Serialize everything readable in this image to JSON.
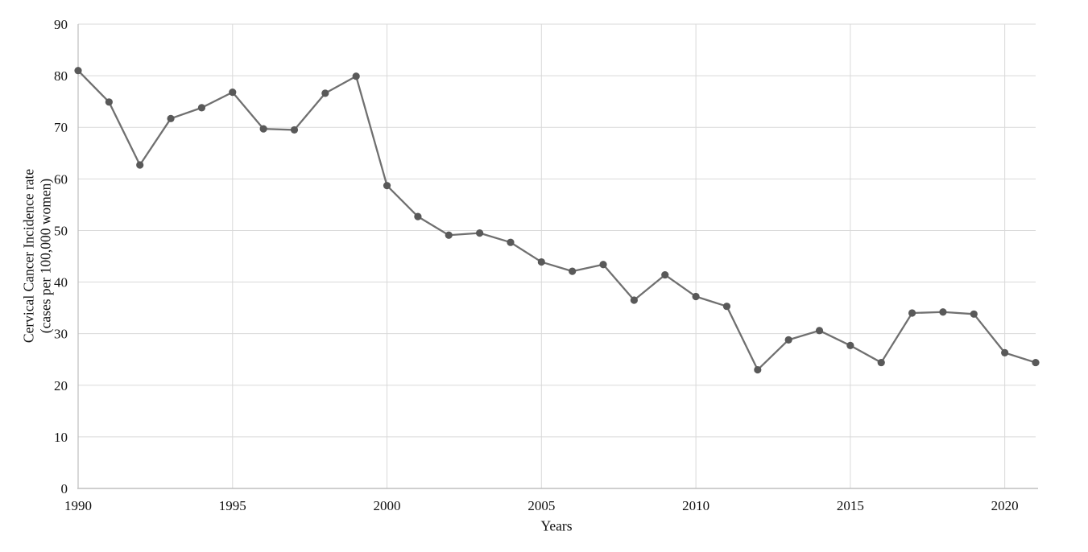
{
  "chart_data": {
    "type": "line",
    "title": "",
    "xlabel": "Years",
    "ylabel_line1": "Cervical Cancer Incidence rate",
    "ylabel_line2": "(cases per 100,000 women)",
    "x": [
      1990,
      1991,
      1992,
      1993,
      1994,
      1995,
      1996,
      1997,
      1998,
      1999,
      2000,
      2001,
      2002,
      2003,
      2004,
      2005,
      2006,
      2007,
      2008,
      2009,
      2010,
      2011,
      2012,
      2013,
      2014,
      2015,
      2016,
      2017,
      2018,
      2019,
      2020,
      2021
    ],
    "series": [
      {
        "name": "Cervical Cancer Incidence rate",
        "values": [
          81.0,
          74.9,
          62.7,
          71.7,
          73.8,
          76.8,
          69.7,
          69.5,
          76.6,
          79.9,
          58.7,
          52.7,
          49.1,
          49.5,
          47.7,
          43.9,
          42.1,
          43.4,
          36.5,
          41.4,
          37.2,
          35.3,
          23.0,
          28.8,
          30.6,
          27.7,
          24.4,
          34.0,
          34.2,
          33.8,
          26.3,
          24.4
        ]
      }
    ],
    "ylim": [
      0,
      90
    ],
    "ytick_step": 10,
    "xticks": [
      1990,
      1995,
      2000,
      2005,
      2010,
      2015,
      2020
    ],
    "grid": true,
    "legend": "none",
    "colors": {
      "line": "#707070",
      "marker": "#595959",
      "gridline": "#d9d9d9",
      "axis": "#bfbfbf",
      "text": "#111111",
      "background": "#ffffff"
    }
  }
}
